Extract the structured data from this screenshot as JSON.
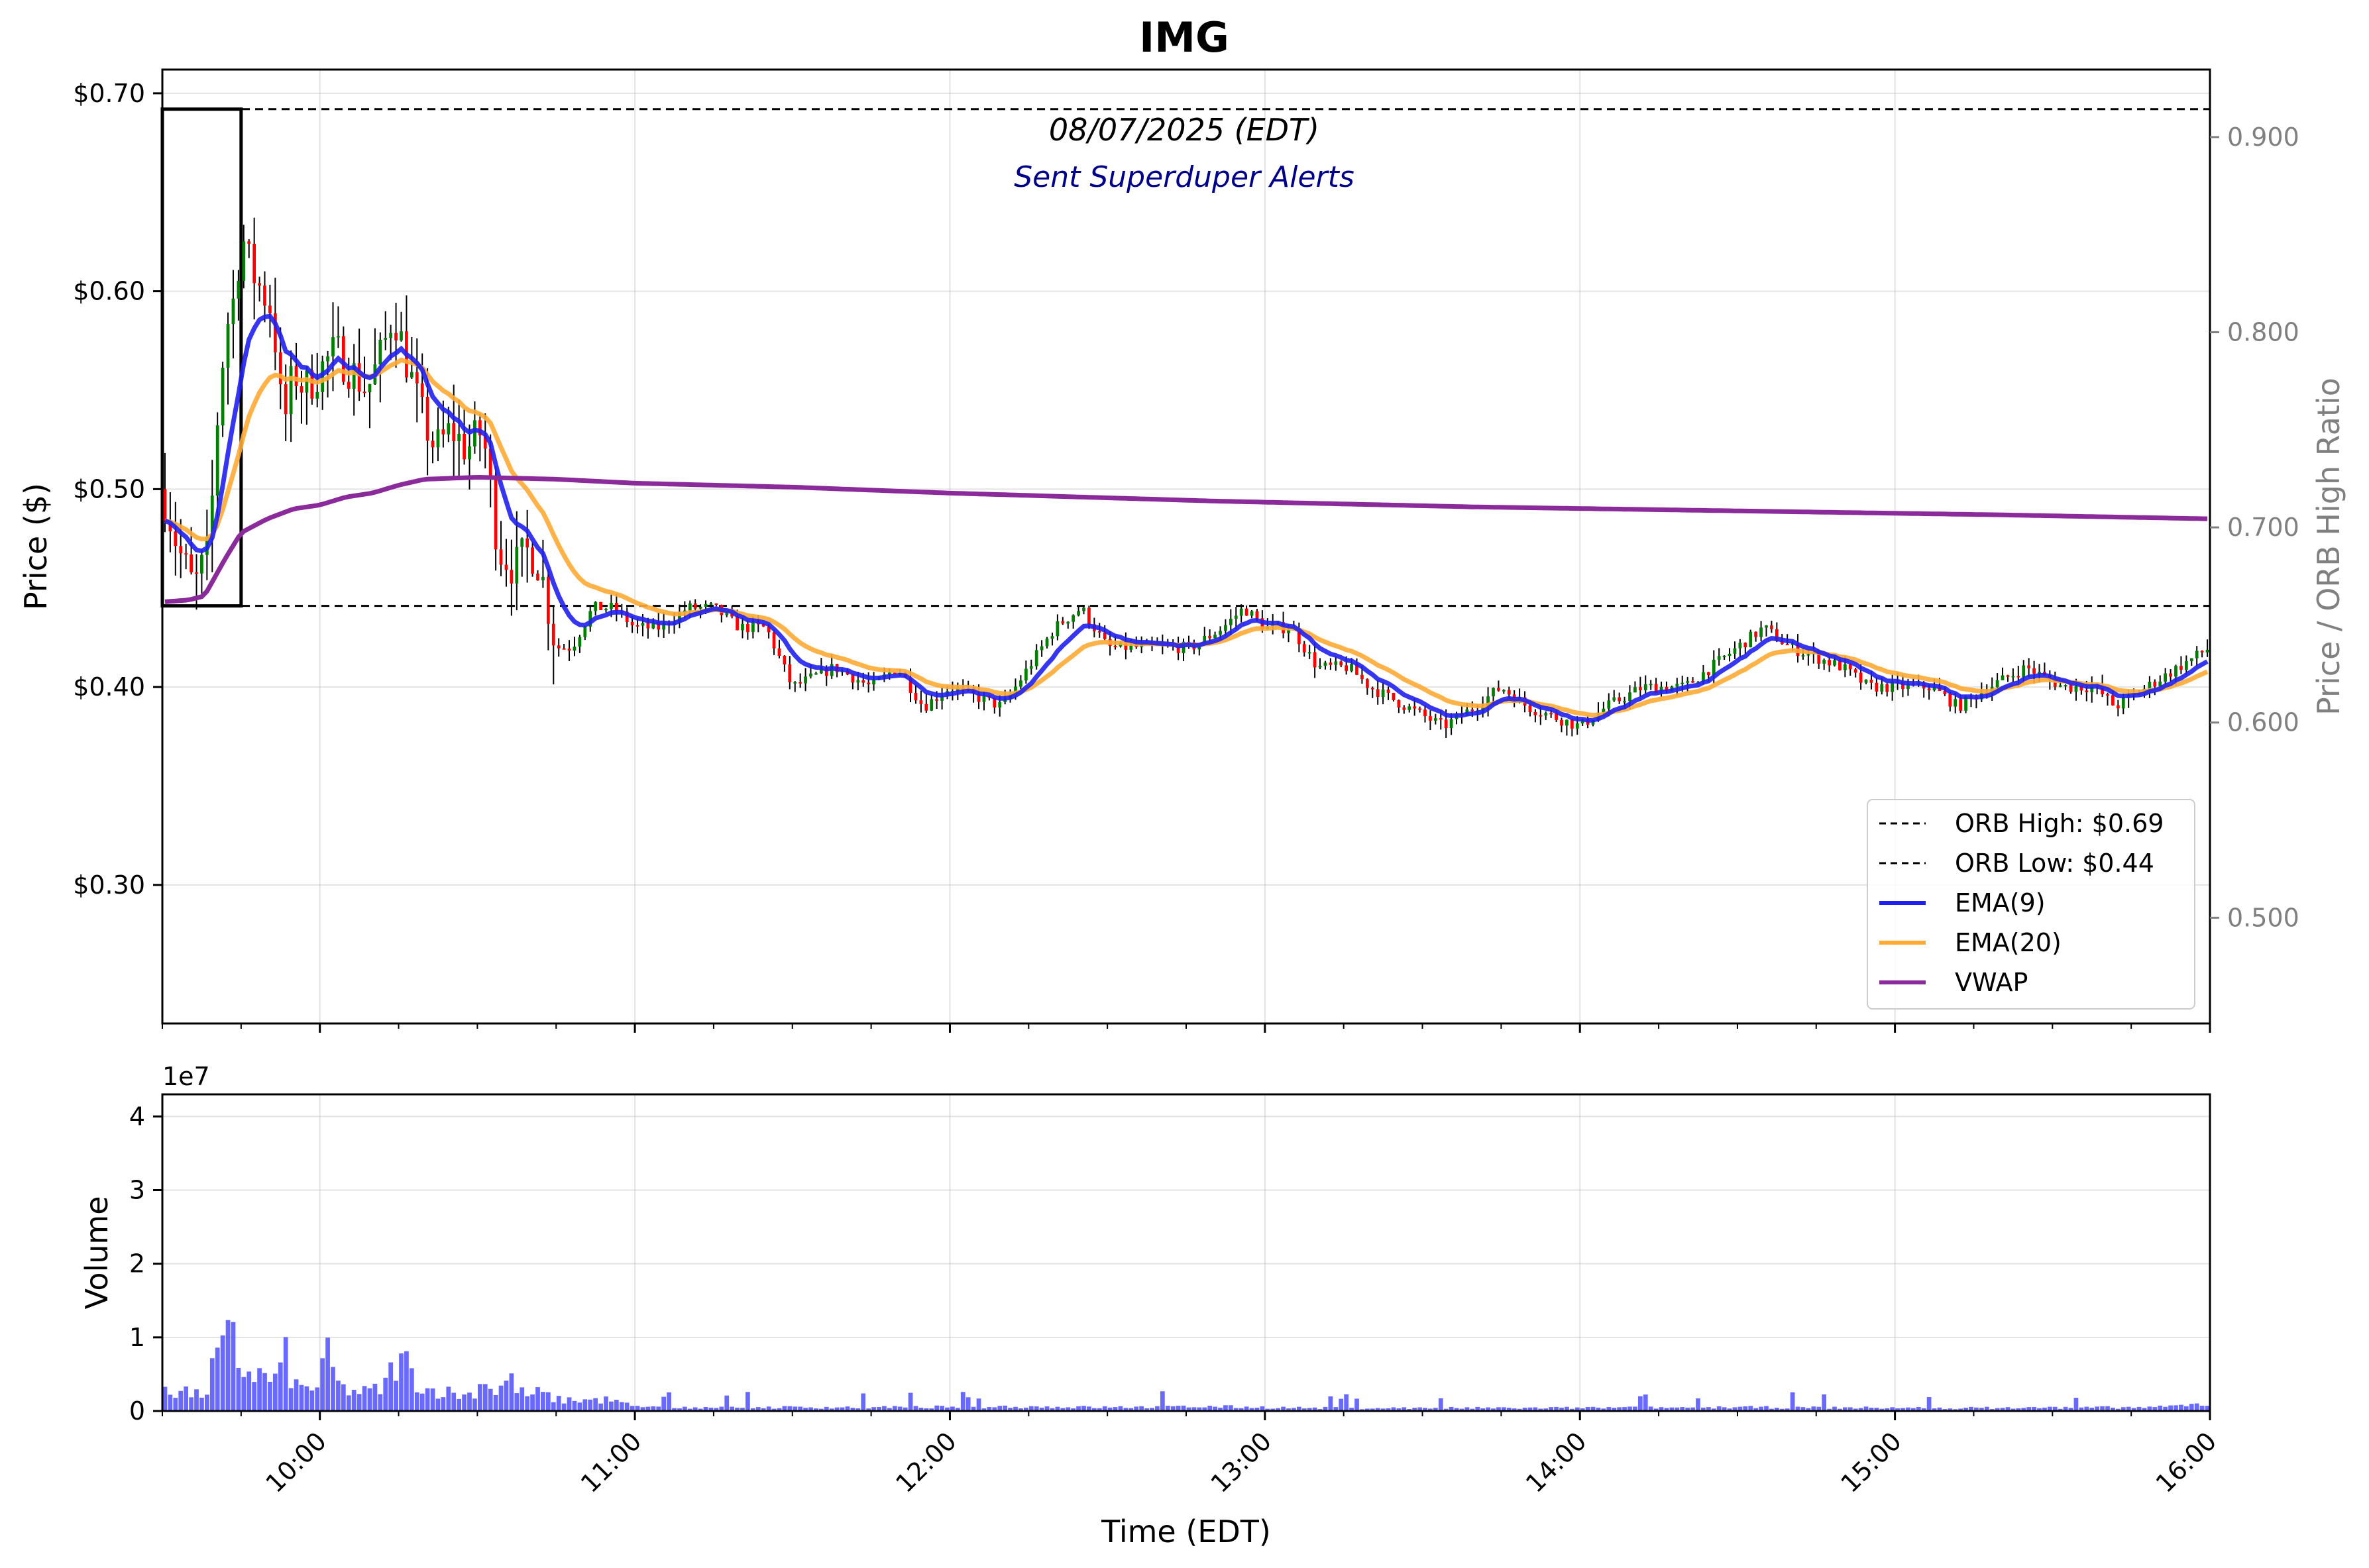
{
  "chart_data": [
    {
      "type": "candlestick",
      "title": "IMG",
      "subtitle": "08/07/2025 (EDT)",
      "annotation": "Sent Superduper Alerts",
      "ylabel": "Price ($)",
      "ylabel_right": "Price / ORB High Ratio",
      "xlabel": "Time (EDT)",
      "x_range": [
        "09:30",
        "16:00"
      ],
      "ylim": [
        0.23,
        0.712
      ],
      "ylim_right": [
        0.4458,
        0.9346
      ],
      "y_ticks": [
        "$0.30",
        "$0.40",
        "$0.50",
        "$0.60",
        "$0.70"
      ],
      "y_tick_values": [
        0.3,
        0.4,
        0.5,
        0.6,
        0.7
      ],
      "y_ticks_right": [
        "0.500",
        "0.600",
        "0.700",
        "0.800",
        "0.900"
      ],
      "y_tick_values_right": [
        0.5,
        0.6,
        0.7,
        0.8,
        0.9
      ],
      "x_ticks": [
        "10:00",
        "11:00",
        "12:00",
        "13:00",
        "14:00",
        "15:00",
        "16:00"
      ],
      "x_tick_minutes": [
        30,
        90,
        150,
        210,
        270,
        330,
        390
      ],
      "orb": {
        "high": 0.692,
        "low": 0.441,
        "window": [
          "09:30",
          "09:45"
        ]
      },
      "legend": {
        "placement": "lower-right",
        "entries": [
          "ORB High: $0.69",
          "ORB Low: $0.44",
          "EMA(9)",
          "EMA(20)",
          "VWAP"
        ]
      },
      "colors": {
        "up": "#008000",
        "down": "#ff0000",
        "wick": "#000000",
        "ema9": "#2020ee",
        "ema20": "#ffaa33",
        "vwap": "#8b2a9a",
        "orb_line": "#000000"
      },
      "price_waypoints": [
        [
          0,
          0.5
        ],
        [
          3,
          0.47
        ],
        [
          6,
          0.45
        ],
        [
          9,
          0.47
        ],
        [
          10,
          0.52
        ],
        [
          12,
          0.58
        ],
        [
          14,
          0.6
        ],
        [
          15,
          0.63
        ],
        [
          17,
          0.61
        ],
        [
          19,
          0.6
        ],
        [
          21,
          0.59
        ],
        [
          23,
          0.53
        ],
        [
          25,
          0.56
        ],
        [
          27,
          0.55
        ],
        [
          30,
          0.56
        ],
        [
          33,
          0.57
        ],
        [
          36,
          0.56
        ],
        [
          39,
          0.55
        ],
        [
          42,
          0.57
        ],
        [
          44,
          0.59
        ],
        [
          46,
          0.57
        ],
        [
          49,
          0.54
        ],
        [
          52,
          0.52
        ],
        [
          55,
          0.53
        ],
        [
          58,
          0.52
        ],
        [
          61,
          0.53
        ],
        [
          64,
          0.47
        ],
        [
          67,
          0.46
        ],
        [
          70,
          0.47
        ],
        [
          72,
          0.46
        ],
        [
          75,
          0.42
        ],
        [
          78,
          0.42
        ],
        [
          82,
          0.44
        ],
        [
          86,
          0.44
        ],
        [
          90,
          0.43
        ],
        [
          95,
          0.43
        ],
        [
          100,
          0.44
        ],
        [
          105,
          0.44
        ],
        [
          110,
          0.43
        ],
        [
          115,
          0.43
        ],
        [
          120,
          0.4
        ],
        [
          128,
          0.41
        ],
        [
          135,
          0.4
        ],
        [
          140,
          0.41
        ],
        [
          145,
          0.39
        ],
        [
          150,
          0.4
        ],
        [
          160,
          0.39
        ],
        [
          165,
          0.41
        ],
        [
          170,
          0.43
        ],
        [
          175,
          0.44
        ],
        [
          180,
          0.42
        ],
        [
          185,
          0.42
        ],
        [
          190,
          0.42
        ],
        [
          196,
          0.42
        ],
        [
          202,
          0.43
        ],
        [
          206,
          0.44
        ],
        [
          210,
          0.43
        ],
        [
          215,
          0.43
        ],
        [
          220,
          0.41
        ],
        [
          226,
          0.41
        ],
        [
          230,
          0.4
        ],
        [
          237,
          0.39
        ],
        [
          244,
          0.38
        ],
        [
          250,
          0.39
        ],
        [
          255,
          0.4
        ],
        [
          260,
          0.39
        ],
        [
          265,
          0.385
        ],
        [
          270,
          0.38
        ],
        [
          275,
          0.39
        ],
        [
          282,
          0.4
        ],
        [
          290,
          0.4
        ],
        [
          295,
          0.41
        ],
        [
          300,
          0.42
        ],
        [
          305,
          0.43
        ],
        [
          310,
          0.42
        ],
        [
          320,
          0.41
        ],
        [
          325,
          0.4
        ],
        [
          330,
          0.4
        ],
        [
          337,
          0.4
        ],
        [
          342,
          0.39
        ],
        [
          348,
          0.4
        ],
        [
          355,
          0.41
        ],
        [
          362,
          0.4
        ],
        [
          368,
          0.4
        ],
        [
          372,
          0.39
        ],
        [
          378,
          0.4
        ],
        [
          384,
          0.41
        ],
        [
          390,
          0.42
        ]
      ],
      "vwap_waypoints": [
        [
          0,
          0.443
        ],
        [
          5,
          0.444
        ],
        [
          8,
          0.446
        ],
        [
          12,
          0.465
        ],
        [
          15,
          0.478
        ],
        [
          20,
          0.485
        ],
        [
          25,
          0.49
        ],
        [
          30,
          0.492
        ],
        [
          35,
          0.496
        ],
        [
          40,
          0.498
        ],
        [
          45,
          0.502
        ],
        [
          50,
          0.505
        ],
        [
          60,
          0.506
        ],
        [
          75,
          0.505
        ],
        [
          90,
          0.503
        ],
        [
          120,
          0.501
        ],
        [
          150,
          0.498
        ],
        [
          200,
          0.494
        ],
        [
          250,
          0.491
        ],
        [
          300,
          0.489
        ],
        [
          350,
          0.487
        ],
        [
          390,
          0.485
        ]
      ],
      "volume": {
        "ylabel": "Volume",
        "scale_label": "1e7",
        "ylim": [
          0,
          4.3
        ],
        "y_ticks": [
          "0",
          "1",
          "2",
          "3",
          "4"
        ],
        "y_tick_values": [
          0,
          1,
          2,
          3,
          4
        ],
        "color": "#4444ff",
        "waypoints": [
          [
            0,
            0.4
          ],
          [
            2,
            0.25
          ],
          [
            4,
            0.3
          ],
          [
            6,
            0.2
          ],
          [
            8,
            0.25
          ],
          [
            9,
            0.3
          ],
          [
            10,
            0.8
          ],
          [
            12,
            0.75
          ],
          [
            13,
            1.2
          ],
          [
            14,
            0.65
          ],
          [
            16,
            0.55
          ],
          [
            18,
            0.5
          ],
          [
            20,
            0.45
          ],
          [
            22,
            0.4
          ],
          [
            23,
            0.85
          ],
          [
            25,
            0.35
          ],
          [
            27,
            0.3
          ],
          [
            30,
            0.35
          ],
          [
            31,
            0.8
          ],
          [
            34,
            0.3
          ],
          [
            38,
            0.25
          ],
          [
            42,
            0.3
          ],
          [
            44,
            0.6
          ],
          [
            46,
            0.7
          ],
          [
            48,
            0.45
          ],
          [
            50,
            0.3
          ],
          [
            55,
            0.25
          ],
          [
            58,
            0.2
          ],
          [
            60,
            0.3
          ],
          [
            62,
            0.5
          ],
          [
            63,
            0.2
          ],
          [
            66,
            0.45
          ],
          [
            69,
            0.2
          ],
          [
            72,
            0.25
          ],
          [
            75,
            0.15
          ],
          [
            80,
            0.15
          ],
          [
            85,
            0.15
          ],
          [
            90,
            0.06
          ],
          [
            100,
            0.05
          ],
          [
            120,
            0.05
          ],
          [
            140,
            0.05
          ],
          [
            160,
            0.06
          ],
          [
            180,
            0.05
          ],
          [
            200,
            0.06
          ],
          [
            220,
            0.04
          ],
          [
            260,
            0.04
          ],
          [
            300,
            0.05
          ],
          [
            340,
            0.04
          ],
          [
            380,
            0.05
          ],
          [
            390,
            0.1
          ]
        ]
      }
    }
  ]
}
